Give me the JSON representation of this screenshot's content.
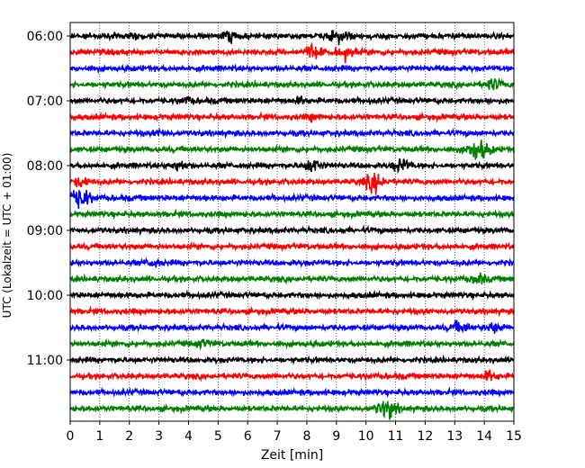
{
  "chart_data": {
    "type": "line",
    "title": "",
    "xlabel": "Zeit  [min]",
    "ylabel": "UTC (Lokalzeit = UTC + 01:00)",
    "xlim": [
      0,
      15
    ],
    "x_ticks": [
      "0",
      "1",
      "2",
      "3",
      "4",
      "5",
      "6",
      "7",
      "8",
      "9",
      "10",
      "11",
      "12",
      "13",
      "14",
      "15"
    ],
    "y_ticks": [
      "06:00",
      "07:00",
      "08:00",
      "09:00",
      "10:00",
      "11:00"
    ],
    "grid": "vertical dotted",
    "colors": [
      "#000000",
      "#ff0000",
      "#0000ff",
      "#008000"
    ],
    "traces": [
      {
        "start": "06:00",
        "color": "#000000",
        "events": [
          [
            5.4,
            1.6
          ],
          [
            9.1,
            2.4
          ],
          [
            2.2,
            0.8
          ]
        ]
      },
      {
        "start": "06:15",
        "color": "#ff0000",
        "events": [
          [
            8.2,
            2.2
          ],
          [
            9.3,
            2.0
          ]
        ]
      },
      {
        "start": "06:30",
        "color": "#0000ff",
        "events": []
      },
      {
        "start": "06:45",
        "color": "#008000",
        "events": [
          [
            14.3,
            1.8
          ]
        ]
      },
      {
        "start": "07:00",
        "color": "#000000",
        "events": [
          [
            3.9,
            1.0
          ],
          [
            7.8,
            1.0
          ]
        ]
      },
      {
        "start": "07:15",
        "color": "#ff0000",
        "events": [
          [
            8.2,
            1.0
          ]
        ]
      },
      {
        "start": "07:30",
        "color": "#0000ff",
        "events": [
          [
            3.1,
            0.8
          ]
        ]
      },
      {
        "start": "07:45",
        "color": "#008000",
        "events": [
          [
            13.8,
            3.5
          ]
        ]
      },
      {
        "start": "08:00",
        "color": "#000000",
        "events": [
          [
            3.7,
            1.6
          ],
          [
            8.2,
            2.2
          ],
          [
            11.2,
            2.2
          ]
        ]
      },
      {
        "start": "08:15",
        "color": "#ff0000",
        "events": [
          [
            0.4,
            1.5
          ],
          [
            10.3,
            3.0
          ]
        ]
      },
      {
        "start": "08:30",
        "color": "#0000ff",
        "events": [
          [
            0.3,
            3.5
          ]
        ]
      },
      {
        "start": "08:45",
        "color": "#008000",
        "events": []
      },
      {
        "start": "09:00",
        "color": "#000000",
        "events": []
      },
      {
        "start": "09:15",
        "color": "#ff0000",
        "events": []
      },
      {
        "start": "09:30",
        "color": "#0000ff",
        "events": [
          [
            2.8,
            1.2
          ]
        ]
      },
      {
        "start": "09:45",
        "color": "#008000",
        "events": [
          [
            13.8,
            1.6
          ]
        ]
      },
      {
        "start": "10:00",
        "color": "#000000",
        "events": []
      },
      {
        "start": "10:15",
        "color": "#ff0000",
        "events": []
      },
      {
        "start": "10:30",
        "color": "#0000ff",
        "events": [
          [
            13.2,
            1.8
          ],
          [
            14.3,
            1.4
          ]
        ]
      },
      {
        "start": "10:45",
        "color": "#008000",
        "events": [
          [
            4.5,
            1.2
          ]
        ]
      },
      {
        "start": "11:00",
        "color": "#000000",
        "events": []
      },
      {
        "start": "11:15",
        "color": "#ff0000",
        "events": [
          [
            14.2,
            1.6
          ]
        ]
      },
      {
        "start": "11:30",
        "color": "#0000ff",
        "events": []
      },
      {
        "start": "11:45",
        "color": "#008000",
        "events": [
          [
            10.7,
            3.0
          ]
        ]
      }
    ]
  }
}
